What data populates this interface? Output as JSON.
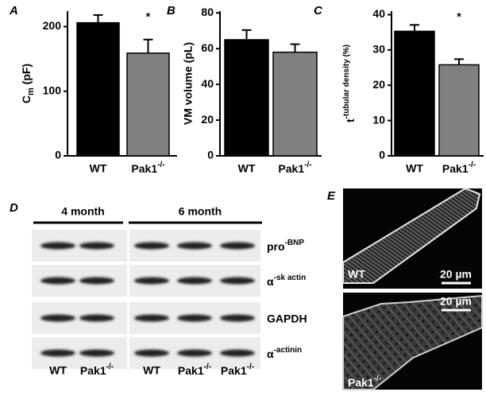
{
  "chart_data": [
    {
      "type": "bar",
      "panel": "A",
      "ylabel": [
        "C",
        "m",
        " (pF)"
      ],
      "categories": [
        "WT",
        "Pak1-/-"
      ],
      "values": [
        206,
        159
      ],
      "errors": [
        12,
        21
      ],
      "colors": [
        "#000000",
        "#808080"
      ],
      "ylim": [
        0,
        224
      ],
      "yticks": [
        0,
        100,
        200
      ],
      "annotations": [
        {
          "text": "*",
          "category": 1
        }
      ]
    },
    {
      "type": "bar",
      "panel": "B",
      "ylabel": "VM volume (pL)",
      "categories": [
        "WT",
        "Pak1-/-"
      ],
      "values": [
        65,
        58
      ],
      "errors": [
        5.4,
        4.5
      ],
      "colors": [
        "#000000",
        "#808080"
      ],
      "ylim": [
        0,
        81
      ],
      "yticks": [
        0,
        20,
        40,
        60,
        80
      ],
      "annotations": []
    },
    {
      "type": "bar",
      "panel": "C",
      "ylabel": "t-tubular density (%)",
      "categories": [
        "WT",
        "Pak1-/-"
      ],
      "values": [
        35.3,
        25.8
      ],
      "errors": [
        1.8,
        1.6
      ],
      "colors": [
        "#000000",
        "#808080"
      ],
      "ylim": [
        0,
        41
      ],
      "yticks": [
        0,
        10,
        20,
        30,
        40
      ],
      "annotations": [
        {
          "text": "*",
          "category": 1
        }
      ]
    }
  ],
  "panel_d": {
    "label": "D",
    "groups": [
      "4 month",
      "6 month"
    ],
    "proteins": [
      "pro-BNP",
      "α-sk actin",
      "GAPDH",
      "α-actinin"
    ],
    "lanes": [
      "WT",
      "Pak1-/-",
      "WT",
      "Pak1-/-",
      "Pak1-/-"
    ]
  },
  "panel_e": {
    "label": "E",
    "images": [
      {
        "label": "WT",
        "scale": "20 µm"
      },
      {
        "label": "Pak1-/-",
        "scale": "20 µm"
      }
    ]
  }
}
